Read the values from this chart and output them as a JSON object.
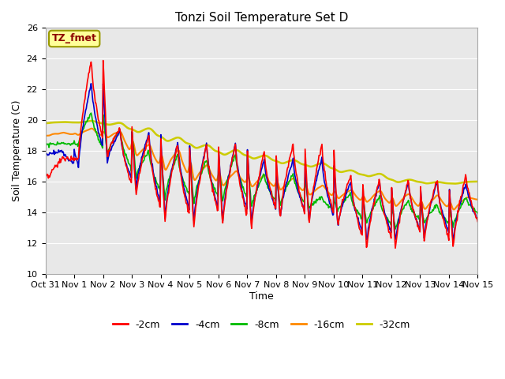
{
  "title": "Tonzi Soil Temperature Set D",
  "xlabel": "Time",
  "ylabel": "Soil Temperature (C)",
  "ylim": [
    10,
    26
  ],
  "xlim": [
    0,
    15
  ],
  "annotation_text": "TZ_fmet",
  "annotation_color": "#8B0000",
  "annotation_bg": "#FFFF99",
  "annotation_border": "#999900",
  "series_colors": [
    "#FF0000",
    "#0000CC",
    "#00BB00",
    "#FF8800",
    "#CCCC00"
  ],
  "series_labels": [
    "-2cm",
    "-4cm",
    "-8cm",
    "-16cm",
    "-32cm"
  ],
  "bg_color": "#E8E8E8",
  "grid_color": "#FFFFFF",
  "legend_fontsize": 9,
  "title_fontsize": 11,
  "axis_fontsize": 9,
  "tick_fontsize": 8
}
